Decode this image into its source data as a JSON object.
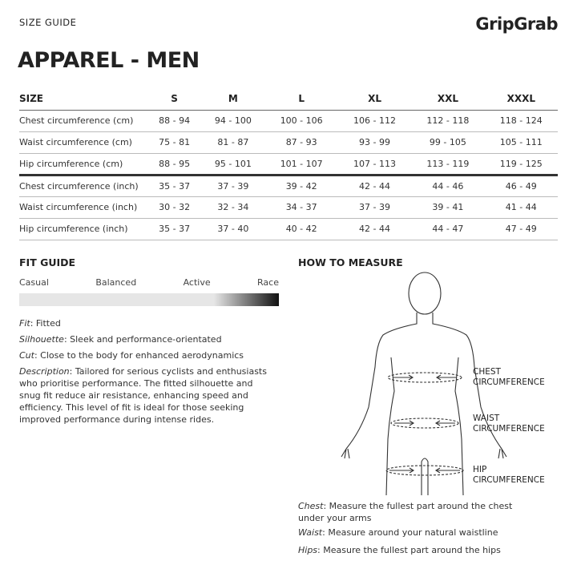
{
  "header": {
    "kicker": "SIZE GUIDE",
    "brand": "GripGrab",
    "title": "APPAREL - MEN"
  },
  "table": {
    "headers": [
      "SIZE",
      "S",
      "M",
      "L",
      "XL",
      "XXL",
      "XXXL"
    ],
    "rows": [
      [
        "Chest circumference (cm)",
        "88 - 94",
        "94 - 100",
        "100 - 106",
        "106 - 112",
        "112 - 118",
        "118 - 124"
      ],
      [
        "Waist circumference (cm)",
        "75 - 81",
        "81 - 87",
        "87 - 93",
        "93 - 99",
        "99 - 105",
        "105 - 111"
      ],
      [
        "Hip circumference (cm)",
        "88 - 95",
        "95 - 101",
        "101 - 107",
        "107 - 113",
        "113 - 119",
        "119 - 125"
      ],
      [
        "Chest circumference (inch)",
        "35 - 37",
        "37 - 39",
        "39 - 42",
        "42 - 44",
        "44 - 46",
        "46 - 49"
      ],
      [
        "Waist circumference (inch)",
        "30 - 32",
        "32 - 34",
        "34 - 37",
        "37 - 39",
        "39 - 41",
        "41 - 44"
      ],
      [
        "Hip circumference (inch)",
        "35 - 37",
        "37 - 40",
        "40 - 42",
        "42 - 44",
        "44 - 47",
        "47 - 49"
      ]
    ]
  },
  "fit_guide": {
    "title": "FIT GUIDE",
    "scale": [
      "Casual",
      "Balanced",
      "Active",
      "Race"
    ],
    "level": "Race",
    "fit_label": "Fit",
    "fit": ": Fitted",
    "silhouette_label": "Silhouette",
    "silhouette": ": Sleek and performance-orientated",
    "cut_label": "Cut",
    "cut": ": Close to the body for enhanced aerodynamics",
    "description_label": "Description",
    "description": ": Tailored for serious cyclists and enthusiasts who prioritise performance. The fitted silhouette and snug fit reduce air resistance, enhancing speed and efficiency. This level of fit is ideal for those seeking improved performance during intense rides."
  },
  "measure": {
    "title": "HOW TO MEASURE",
    "chest_label": [
      "CHEST",
      "CIRCUMFERENCE"
    ],
    "waist_label": [
      "WAIST",
      "CIRCUMFERENCE"
    ],
    "hip_label": [
      "HIP",
      "CIRCUMFERENCE"
    ],
    "chest_l": "Chest",
    "chest": ": Measure the fullest part around the chest under your arms",
    "waist_l": "Waist",
    "waist": ": Measure around your natural waistline",
    "hips_l": "Hips",
    "hips": ": Measure the fullest part around the hips"
  }
}
